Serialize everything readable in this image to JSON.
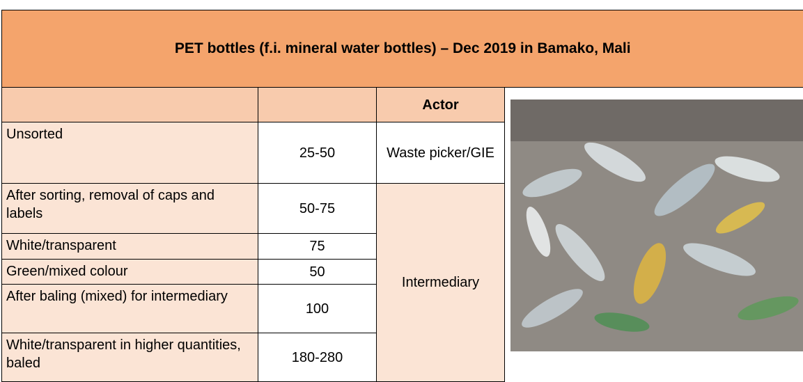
{
  "title": "PET bottles (f.i. mineral water bottles) – Dec 2019 in Bamako, Mali",
  "table": {
    "header_actor": "Actor",
    "rows": [
      {
        "item": "Unsorted",
        "price": "25-50",
        "actor": "Waste picker/GIE"
      },
      {
        "item": "After sorting, removal of caps and labels",
        "price": "50-75",
        "actor": "Intermediary"
      },
      {
        "item": "White/transparent",
        "price": "75"
      },
      {
        "item": "Green/mixed colour",
        "price": "50"
      },
      {
        "item": "After baling (mixed) for intermediary",
        "price": "100"
      },
      {
        "item": "White/transparent in higher quantities, baled",
        "price": "180-280"
      }
    ]
  }
}
